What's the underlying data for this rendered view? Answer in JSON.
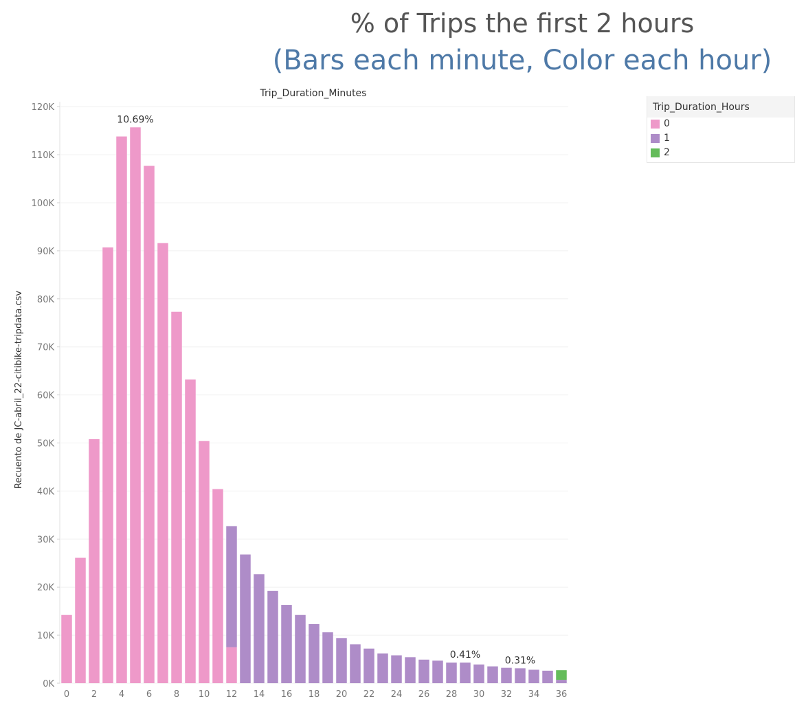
{
  "title": {
    "line1": "% of Trips the first 2 hours",
    "line2": "(Bars each minute, Color each hour)"
  },
  "legend": {
    "title": "Trip_Duration_Hours",
    "items": [
      {
        "label": "0",
        "color": "#ee99c9"
      },
      {
        "label": "1",
        "color": "#ae8cc8"
      },
      {
        "label": "2",
        "color": "#64bc5a"
      }
    ]
  },
  "chart_data": {
    "type": "bar",
    "title": "Trip_Duration_Minutes",
    "xlabel": "",
    "ylabel": "Recuento de JC-abril_22-citibike-tripdata.csv",
    "ylim": [
      0,
      122000
    ],
    "y_ticks": [
      "0K",
      "10K",
      "20K",
      "30K",
      "40K",
      "50K",
      "60K",
      "70K",
      "80K",
      "90K",
      "100K",
      "110K",
      "120K"
    ],
    "x_ticks": [
      "0",
      "2",
      "4",
      "6",
      "8",
      "10",
      "12",
      "14",
      "16",
      "18",
      "20",
      "22",
      "24",
      "26",
      "28",
      "30",
      "32",
      "34",
      "36"
    ],
    "grid": true,
    "legend_position": "top-right",
    "categories": [
      0,
      1,
      2,
      3,
      4,
      5,
      6,
      7,
      8,
      9,
      10,
      11,
      12,
      13,
      14,
      15,
      16,
      17,
      18,
      19,
      20,
      21,
      22,
      23,
      24,
      25,
      26,
      27,
      28,
      29,
      30,
      31,
      32,
      33,
      34,
      35,
      36
    ],
    "series": [
      {
        "name": "0",
        "color": "#ee99c9",
        "values": [
          14200,
          26100,
          50800,
          90700,
          113800,
          115700,
          107700,
          91600,
          77300,
          63200,
          50400,
          40400,
          7500,
          0,
          0,
          0,
          0,
          0,
          0,
          0,
          0,
          0,
          0,
          0,
          0,
          0,
          0,
          0,
          0,
          0,
          0,
          0,
          0,
          0,
          0,
          0,
          0
        ]
      },
      {
        "name": "1",
        "color": "#ae8cc8",
        "values": [
          0,
          0,
          0,
          0,
          0,
          0,
          0,
          0,
          0,
          0,
          0,
          0,
          25200,
          26800,
          22700,
          19200,
          16300,
          14200,
          12300,
          10600,
          9400,
          8100,
          7200,
          6200,
          5800,
          5400,
          4900,
          4700,
          4300,
          4300,
          3900,
          3500,
          3200,
          3100,
          2800,
          2600,
          700
        ]
      },
      {
        "name": "2",
        "color": "#64bc5a",
        "values": [
          0,
          0,
          0,
          0,
          0,
          0,
          0,
          0,
          0,
          0,
          0,
          0,
          0,
          0,
          0,
          0,
          0,
          0,
          0,
          0,
          0,
          0,
          0,
          0,
          0,
          0,
          0,
          0,
          0,
          0,
          0,
          0,
          0,
          0,
          0,
          0,
          2000
        ]
      }
    ],
    "annotations": [
      {
        "category": 5,
        "text": "10.69%"
      },
      {
        "category": 29,
        "text": "0.41%"
      },
      {
        "category": 33,
        "text": "0.31%"
      }
    ]
  }
}
